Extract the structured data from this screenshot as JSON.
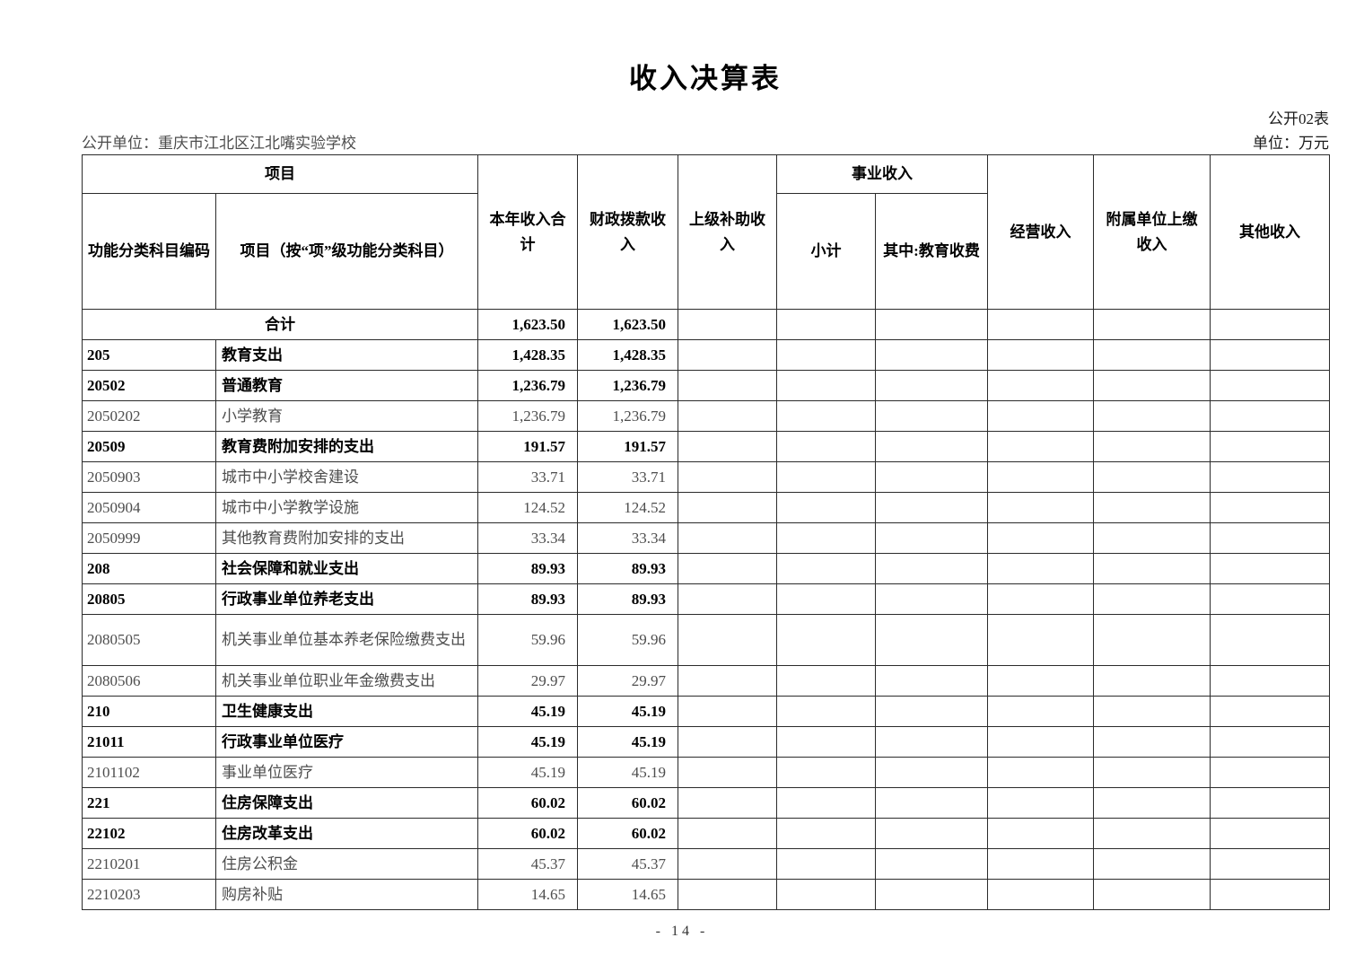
{
  "page": {
    "title": "收入决算表",
    "table_code": "公开02表",
    "publisher": "公开单位：重庆市江北区江北嘴实验学校",
    "unit": "单位：万元",
    "page_number": "- 14 -"
  },
  "table": {
    "header": {
      "project_group": "项目",
      "code": "功能分类科目编码",
      "project": "项目（按“项”级功能分类科目）",
      "total_income": "本年收入合计",
      "fiscal_allocation": "财政拨款收入",
      "superior_subsidy": "上级补助收入",
      "business_income_group": "事业收入",
      "subtotal": "小计",
      "education_fee": "其中:教育收费",
      "operating_income": "经营收入",
      "affiliated_remit": "附属单位上缴收入",
      "other_income": "其他收入"
    },
    "rows": [
      {
        "code": "",
        "name": "合计",
        "total": "1,623.50",
        "fiscal": "1,623.50",
        "bold": true,
        "merged": true
      },
      {
        "code": "205",
        "name": "教育支出",
        "total": "1,428.35",
        "fiscal": "1,428.35",
        "bold": true
      },
      {
        "code": "20502",
        "name": "普通教育",
        "total": "1,236.79",
        "fiscal": "1,236.79",
        "bold": true
      },
      {
        "code": "2050202",
        "name": "小学教育",
        "total": "1,236.79",
        "fiscal": "1,236.79"
      },
      {
        "code": "20509",
        "name": "教育费附加安排的支出",
        "total": "191.57",
        "fiscal": "191.57",
        "bold": true
      },
      {
        "code": "2050903",
        "name": "城市中小学校舍建设",
        "total": "33.71",
        "fiscal": "33.71"
      },
      {
        "code": "2050904",
        "name": "城市中小学教学设施",
        "total": "124.52",
        "fiscal": "124.52"
      },
      {
        "code": "2050999",
        "name": "其他教育费附加安排的支出",
        "total": "33.34",
        "fiscal": "33.34"
      },
      {
        "code": "208",
        "name": "社会保障和就业支出",
        "total": "89.93",
        "fiscal": "89.93",
        "bold": true
      },
      {
        "code": "20805",
        "name": "行政事业单位养老支出",
        "total": "89.93",
        "fiscal": "89.93",
        "bold": true
      },
      {
        "code": "2080505",
        "name": "机关事业单位基本养老保险缴费支出",
        "total": "59.96",
        "fiscal": "59.96",
        "tall": true
      },
      {
        "code": "2080506",
        "name": "机关事业单位职业年金缴费支出",
        "total": "29.97",
        "fiscal": "29.97"
      },
      {
        "code": "210",
        "name": "卫生健康支出",
        "total": "45.19",
        "fiscal": "45.19",
        "bold": true
      },
      {
        "code": "21011",
        "name": "行政事业单位医疗",
        "total": "45.19",
        "fiscal": "45.19",
        "bold": true
      },
      {
        "code": "2101102",
        "name": "事业单位医疗",
        "total": "45.19",
        "fiscal": "45.19"
      },
      {
        "code": "221",
        "name": "住房保障支出",
        "total": "60.02",
        "fiscal": "60.02",
        "bold": true
      },
      {
        "code": "22102",
        "name": "住房改革支出",
        "total": "60.02",
        "fiscal": "60.02",
        "bold": true
      },
      {
        "code": "2210201",
        "name": "住房公积金",
        "total": "45.37",
        "fiscal": "45.37"
      },
      {
        "code": "2210203",
        "name": "购房补贴",
        "total": "14.65",
        "fiscal": "14.65"
      }
    ],
    "empty_trailing_columns": 6
  }
}
